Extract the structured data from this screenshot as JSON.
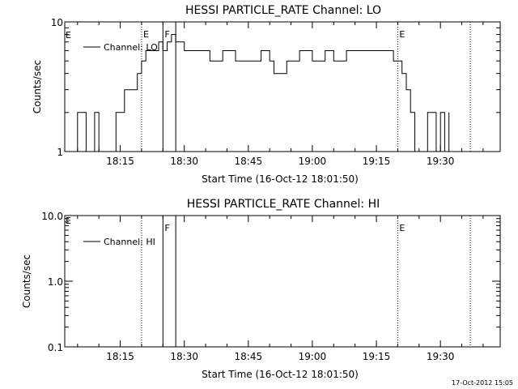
{
  "footer_timestamp": "17-Oct-2012 15:05",
  "chart_data": [
    {
      "type": "line",
      "title": "HESSI PARTICLE_RATE Channel: LO",
      "xlabel": "Start Time (16-Oct-12 18:01:50)",
      "ylabel": "Counts/sec",
      "y_scale": "log",
      "ylim": [
        1,
        10
      ],
      "xlim": [
        "18:02",
        "19:44"
      ],
      "ytick_labels": [
        "1",
        "10"
      ],
      "xtick_labels": [
        "18:15",
        "18:30",
        "18:45",
        "19:00",
        "19:15",
        "19:30"
      ],
      "legend": {
        "label": "Channel: LO",
        "position": "top-left"
      },
      "markers": [
        {
          "time": "18:20",
          "style": "dotted",
          "label": "E"
        },
        {
          "time": "18:25",
          "style": "solid",
          "label": "F"
        },
        {
          "time": "18:28",
          "style": "solid",
          "label": ""
        },
        {
          "time": "19:20",
          "style": "dotted",
          "label": "E"
        },
        {
          "time": "19:37",
          "style": "dotted",
          "label": ""
        }
      ],
      "series": [
        {
          "name": "Channel: LO",
          "x": [
            "18:03",
            "18:05",
            "18:07",
            "18:09",
            "18:10",
            "18:12",
            "18:13",
            "18:14",
            "18:15",
            "18:16",
            "18:17",
            "18:18",
            "18:19",
            "18:20",
            "18:21",
            "18:22",
            "18:23",
            "18:24",
            "18:25",
            "18:26",
            "18:27",
            "18:28",
            "18:30",
            "18:33",
            "18:36",
            "18:39",
            "18:42",
            "18:45",
            "18:48",
            "18:50",
            "18:51",
            "18:54",
            "18:57",
            "19:00",
            "19:03",
            "19:05",
            "19:08",
            "19:11",
            "19:14",
            "19:16",
            "19:18",
            "19:19",
            "19:20",
            "19:21",
            "19:22",
            "19:23",
            "19:24",
            "19:26",
            "19:27",
            "19:29",
            "19:30",
            "19:31",
            "19:32"
          ],
          "y": [
            1,
            2,
            1,
            2,
            1,
            1,
            1,
            2,
            2,
            3,
            3,
            3,
            4,
            5,
            6,
            6,
            6,
            7,
            6,
            7,
            8,
            7,
            6,
            6,
            5,
            6,
            5,
            5,
            6,
            5,
            4,
            5,
            6,
            5,
            6,
            5,
            6,
            6,
            6,
            6,
            6,
            5,
            5,
            4,
            3,
            2,
            1,
            1,
            2,
            1,
            2,
            1,
            2
          ]
        }
      ]
    },
    {
      "type": "line",
      "title": "HESSI PARTICLE_RATE Channel: HI",
      "xlabel": "Start Time (16-Oct-12 18:01:50)",
      "ylabel": "Counts/sec",
      "y_scale": "log",
      "ylim": [
        0.1,
        10
      ],
      "xlim": [
        "18:02",
        "19:44"
      ],
      "ytick_labels": [
        "0.1",
        "1.0",
        "10.0"
      ],
      "xtick_labels": [
        "18:15",
        "18:30",
        "18:45",
        "19:00",
        "19:15",
        "19:30"
      ],
      "legend": {
        "label": "Channel: HI",
        "position": "top-left"
      },
      "markers": [
        {
          "time": "18:20",
          "style": "dotted",
          "label": ""
        },
        {
          "time": "18:25",
          "style": "solid",
          "label": "F"
        },
        {
          "time": "18:28",
          "style": "solid",
          "label": ""
        },
        {
          "time": "19:20",
          "style": "dotted",
          "label": "E"
        },
        {
          "time": "19:37",
          "style": "dotted",
          "label": ""
        }
      ],
      "series": []
    }
  ],
  "panel_corner_labels": [
    "E",
    "E"
  ]
}
